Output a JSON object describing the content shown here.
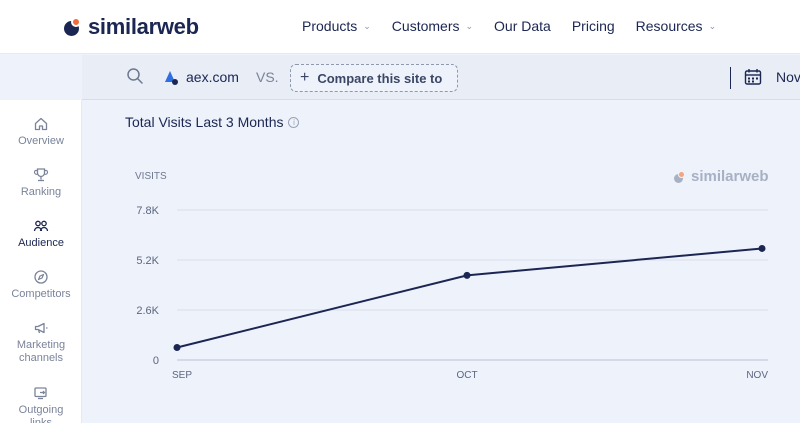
{
  "brand": {
    "name": "similarweb",
    "primary": "#1b2653",
    "accent": "#f26b3a"
  },
  "nav": {
    "items": [
      {
        "label": "Products",
        "dropdown": true
      },
      {
        "label": "Customers",
        "dropdown": true
      },
      {
        "label": "Our Data",
        "dropdown": false
      },
      {
        "label": "Pricing",
        "dropdown": false
      },
      {
        "label": "Resources",
        "dropdown": true
      }
    ]
  },
  "search": {
    "site": "aex.com",
    "vs_label": "VS.",
    "compare_label": "Compare this site to",
    "date_label": "Nov"
  },
  "sidebar": {
    "items": [
      {
        "label": "Overview",
        "icon": "home-icon",
        "active": false
      },
      {
        "label": "Ranking",
        "icon": "trophy-icon",
        "active": false
      },
      {
        "label": "Audience",
        "icon": "people-icon",
        "active": true
      },
      {
        "label": "Competitors",
        "icon": "compass-icon",
        "active": false
      },
      {
        "label": "Marketing channels",
        "icon": "megaphone-icon",
        "active": false
      },
      {
        "label": "Outgoing links",
        "icon": "outgoing-icon",
        "active": false
      }
    ]
  },
  "panel": {
    "title": "Total Visits Last 3 Months",
    "watermark": "similarweb"
  },
  "chart_data": {
    "type": "line",
    "categories": [
      "SEP",
      "OCT",
      "NOV"
    ],
    "values": [
      650,
      4400,
      5800
    ],
    "ylabel": "VISITS",
    "yticks": [
      0,
      2600,
      5200,
      7800
    ],
    "ytick_labels": [
      "0",
      "2.6K",
      "5.2K",
      "7.8K"
    ],
    "ylim": [
      0,
      7800
    ],
    "grid": true,
    "line_color": "#1b2653"
  }
}
